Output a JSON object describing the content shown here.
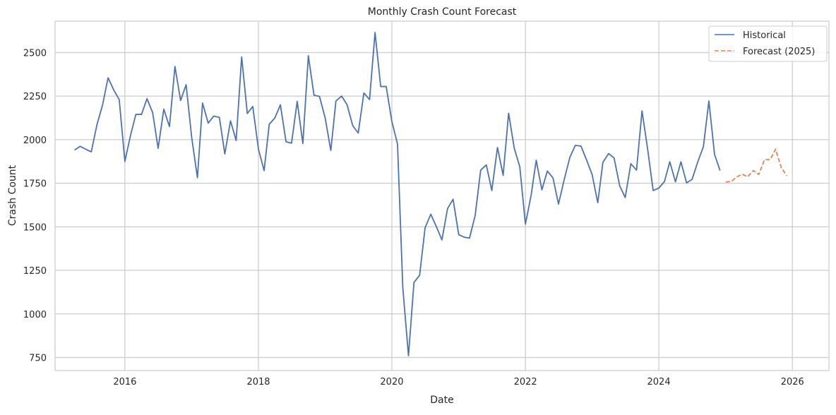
{
  "chart_data": {
    "type": "line",
    "title": "Monthly Crash Count Forecast",
    "xlabel": "Date",
    "ylabel": "Crash Count",
    "xlim": [
      "2014-12-15",
      "2026-07-20"
    ],
    "ylim": [
      675,
      2680
    ],
    "x_ticks": [
      "2016",
      "2018",
      "2020",
      "2022",
      "2024",
      "2026"
    ],
    "y_ticks": [
      750,
      1000,
      1250,
      1500,
      1750,
      2000,
      2250,
      2500
    ],
    "grid": true,
    "legend_position": "top-right",
    "series": [
      {
        "name": "Historical",
        "color": "#4c72b0",
        "style": "solid",
        "x": [
          "2015-04",
          "2015-05",
          "2015-06",
          "2015-07",
          "2015-08",
          "2015-09",
          "2015-10",
          "2015-11",
          "2015-12",
          "2016-01",
          "2016-02",
          "2016-03",
          "2016-04",
          "2016-05",
          "2016-06",
          "2016-07",
          "2016-08",
          "2016-09",
          "2016-10",
          "2016-11",
          "2016-12",
          "2017-01",
          "2017-02",
          "2017-03",
          "2017-04",
          "2017-05",
          "2017-06",
          "2017-07",
          "2017-08",
          "2017-09",
          "2017-10",
          "2017-11",
          "2017-12",
          "2018-01",
          "2018-02",
          "2018-03",
          "2018-04",
          "2018-05",
          "2018-06",
          "2018-07",
          "2018-08",
          "2018-09",
          "2018-10",
          "2018-11",
          "2018-12",
          "2019-01",
          "2019-02",
          "2019-03",
          "2019-04",
          "2019-05",
          "2019-06",
          "2019-07",
          "2019-08",
          "2019-09",
          "2019-10",
          "2019-11",
          "2019-12",
          "2020-01",
          "2020-02",
          "2020-03",
          "2020-04",
          "2020-05",
          "2020-06",
          "2020-07",
          "2020-08",
          "2020-09",
          "2020-10",
          "2020-11",
          "2020-12",
          "2021-01",
          "2021-02",
          "2021-03",
          "2021-04",
          "2021-05",
          "2021-06",
          "2021-07",
          "2021-08",
          "2021-09",
          "2021-10",
          "2021-11",
          "2021-12",
          "2022-01",
          "2022-02",
          "2022-03",
          "2022-04",
          "2022-05",
          "2022-06",
          "2022-07",
          "2022-08",
          "2022-09",
          "2022-10",
          "2022-11",
          "2022-12",
          "2023-01",
          "2023-02",
          "2023-03",
          "2023-04",
          "2023-05",
          "2023-06",
          "2023-07",
          "2023-08",
          "2023-09",
          "2023-10",
          "2023-11",
          "2023-12",
          "2024-01",
          "2024-02",
          "2024-03",
          "2024-04",
          "2024-05",
          "2024-06",
          "2024-07",
          "2024-08",
          "2024-09",
          "2024-10",
          "2024-11",
          "2024-12"
        ],
        "values": [
          1940,
          1962,
          1945,
          1930,
          2085,
          2200,
          2355,
          2285,
          2230,
          1875,
          2025,
          2145,
          2145,
          2235,
          2155,
          1950,
          2175,
          2075,
          2420,
          2225,
          2315,
          2010,
          1782,
          2210,
          2095,
          2135,
          2128,
          1918,
          2108,
          1995,
          2475,
          2150,
          2190,
          1945,
          1822,
          2088,
          2125,
          2200,
          1988,
          1980,
          2220,
          1978,
          2482,
          2255,
          2248,
          2125,
          1938,
          2222,
          2250,
          2200,
          2080,
          2038,
          2268,
          2230,
          2615,
          2305,
          2305,
          2105,
          1975,
          1150,
          760,
          1180,
          1222,
          1495,
          1572,
          1500,
          1425,
          1605,
          1658,
          1455,
          1440,
          1435,
          1565,
          1825,
          1855,
          1708,
          1955,
          1795,
          2152,
          1950,
          1845,
          1515,
          1680,
          1882,
          1712,
          1820,
          1780,
          1630,
          1770,
          1898,
          1967,
          1963,
          1885,
          1800,
          1638,
          1870,
          1920,
          1895,
          1735,
          1668,
          1862,
          1825,
          2165,
          1945,
          1708,
          1722,
          1760,
          1873,
          1758,
          1873,
          1752,
          1772,
          1872,
          1960,
          2222,
          1915,
          1823
        ]
      },
      {
        "name": "Forecast (2025)",
        "color": "#dd8452",
        "style": "dashed",
        "x": [
          "2025-01",
          "2025-02",
          "2025-03",
          "2025-04",
          "2025-05",
          "2025-06",
          "2025-07",
          "2025-08",
          "2025-09",
          "2025-10",
          "2025-11",
          "2025-12"
        ],
        "values": [
          1757,
          1760,
          1785,
          1802,
          1787,
          1823,
          1800,
          1885,
          1885,
          1945,
          1840,
          1793
        ]
      }
    ]
  }
}
